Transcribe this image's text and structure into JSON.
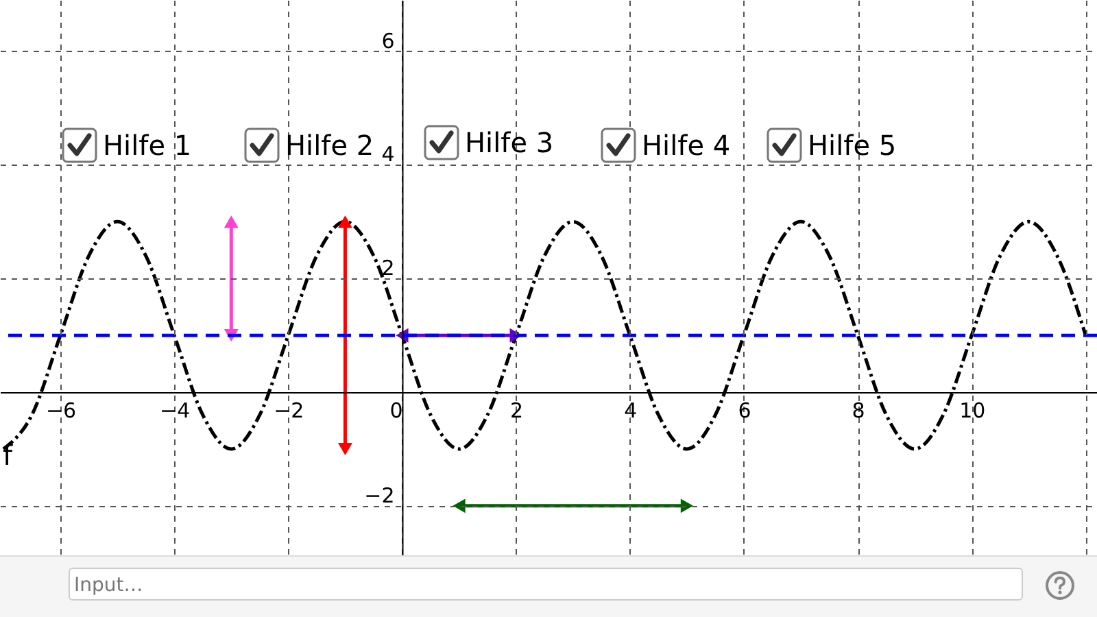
{
  "chart_data": {
    "type": "line",
    "x": [
      -7,
      -6.5,
      -6,
      -5.5,
      -5,
      -4.5,
      -4,
      -3.5,
      -3,
      -2.5,
      -2,
      -1.5,
      -1,
      -0.5,
      0,
      0.5,
      1,
      1.5,
      2,
      2.5,
      3,
      3.5,
      4,
      4.5,
      5,
      5.5,
      6,
      6.5,
      7,
      7.5,
      8,
      8.5,
      9,
      9.5,
      10,
      10.5,
      11,
      11.5,
      12
    ],
    "series": [
      {
        "color": "#000000",
        "line_style": "dashed",
        "values": [
          -1,
          -0.4,
          1,
          2.4,
          3,
          2.4,
          1,
          -0.4,
          -1,
          -0.4,
          1,
          2.4,
          3,
          2.4,
          1,
          -0.4,
          -1,
          -0.4,
          1,
          2.4,
          3,
          2.4,
          1,
          -0.4,
          -1,
          -0.4,
          1,
          2.4,
          3,
          2.4,
          1,
          -0.4,
          -1,
          -0.4,
          1,
          2.4,
          3,
          2.4,
          1
        ]
      },
      {
        "color": "#ff40d0",
        "x": [
          -3,
          -3
        ],
        "values": [
          1,
          3
        ],
        "marker": "triangle"
      },
      {
        "color": "#ff0000",
        "x": [
          -1,
          -1
        ],
        "values": [
          -1,
          3
        ],
        "marker": "triangle"
      },
      {
        "color": "#6a00cc",
        "x": [
          0,
          2
        ],
        "values": [
          1,
          1
        ],
        "marker": "triangle"
      },
      {
        "color": "#006400",
        "x": [
          1,
          5
        ],
        "values": [
          -2,
          -2
        ],
        "marker": "triangle"
      }
    ],
    "xlim": [
      -7.06,
      12.2
    ],
    "ylim": [
      -2.87,
      6.9
    ],
    "xticks": [
      -6,
      -4,
      -2,
      0,
      2,
      4,
      6,
      8,
      10,
      {
        "value": 12,
        "label": null
      }
    ],
    "yticks": [
      -2,
      2,
      4,
      6
    ],
    "grid": true,
    "ref_lines": [
      {
        "axis": "y",
        "value": 1,
        "color": "#0000ff",
        "line_style": "dashed"
      }
    ],
    "annotations": [
      "Hilfe 1",
      "Hilfe 2",
      "Hilfe 3",
      "Hilfe 4",
      "Hilfe 5",
      "Input…",
      "f"
    ]
  }
}
